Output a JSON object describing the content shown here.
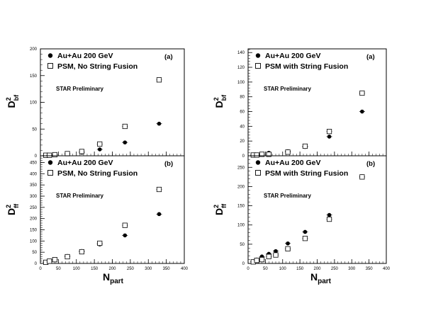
{
  "chart_data": [
    {
      "type": "scatter",
      "panel": "(a)",
      "note": "STAR Preliminary",
      "ylabel": "D",
      "ylabel_sup": "2",
      "ylabel_sub": "bf",
      "xlim": [
        0,
        400
      ],
      "ylim": [
        0,
        200
      ],
      "xticks": [
        0,
        50,
        100,
        150,
        200,
        250,
        300,
        350,
        400
      ],
      "yticks": [
        0,
        50,
        100,
        150,
        200
      ],
      "legend_position": "top-left",
      "series": [
        {
          "name": "Au+Au 200 GeV",
          "marker": "filled-circle",
          "x": [
            15,
            25,
            40,
            75,
            115,
            165,
            235,
            330
          ],
          "y": [
            1,
            1,
            2,
            3,
            6,
            12,
            25,
            60
          ]
        },
        {
          "name": "PSM, No String Fusion",
          "marker": "open-square",
          "x": [
            15,
            25,
            40,
            75,
            115,
            165,
            235,
            330
          ],
          "y": [
            1,
            1,
            2,
            4,
            8,
            22,
            55,
            142
          ]
        }
      ]
    },
    {
      "type": "scatter",
      "panel": "(b)",
      "note": "STAR Preliminary",
      "ylabel": "D",
      "ylabel_sup": "2",
      "ylabel_sub": "ff",
      "xlabel": "N",
      "xlabel_sub": "part",
      "xlim": [
        0,
        400
      ],
      "ylim": [
        0,
        480
      ],
      "xticks": [
        0,
        50,
        100,
        150,
        200,
        250,
        300,
        350,
        400
      ],
      "yticks": [
        0,
        50,
        100,
        150,
        200,
        250,
        300,
        350,
        400,
        450
      ],
      "legend_position": "top-left",
      "series": [
        {
          "name": "Au+Au 200 GeV",
          "marker": "filled-circle",
          "x": [
            15,
            25,
            40,
            75,
            115,
            165,
            235,
            330
          ],
          "y": [
            6,
            10,
            18,
            33,
            55,
            85,
            125,
            220
          ]
        },
        {
          "name": "PSM, No String Fusion",
          "marker": "open-square",
          "x": [
            15,
            25,
            40,
            75,
            115,
            165,
            235,
            330
          ],
          "y": [
            5,
            10,
            17,
            30,
            52,
            90,
            170,
            330
          ]
        }
      ]
    },
    {
      "type": "scatter",
      "panel": "(a)",
      "note": "STAR Preliminary",
      "ylabel": "D",
      "ylabel_sup": "2",
      "ylabel_sub": "bf",
      "xlim": [
        0,
        400
      ],
      "ylim": [
        0,
        145
      ],
      "xticks": [
        0,
        50,
        100,
        150,
        200,
        250,
        300,
        350,
        400
      ],
      "yticks": [
        0,
        20,
        40,
        60,
        80,
        100,
        120,
        140
      ],
      "legend_position": "top-left",
      "series": [
        {
          "name": "Au+Au 200 GeV",
          "marker": "filled-circle",
          "x": [
            15,
            25,
            40,
            60,
            115,
            165,
            235,
            330
          ],
          "y": [
            1,
            1,
            2,
            4,
            6,
            12,
            26,
            60
          ]
        },
        {
          "name": "PSM with String Fusion",
          "marker": "open-square",
          "x": [
            15,
            25,
            40,
            60,
            115,
            165,
            235,
            330
          ],
          "y": [
            1,
            1,
            2,
            2,
            5,
            13,
            33,
            85
          ]
        }
      ]
    },
    {
      "type": "scatter",
      "panel": "(b)",
      "note": "STAR Preliminary",
      "ylabel": "D",
      "ylabel_sup": "2",
      "ylabel_sub": "ff",
      "xlabel": "N",
      "xlabel_sub": "part",
      "xlim": [
        0,
        400
      ],
      "ylim": [
        0,
        280
      ],
      "xticks": [
        0,
        50,
        100,
        150,
        200,
        250,
        300,
        350,
        400
      ],
      "yticks": [
        0,
        50,
        100,
        150,
        200,
        250
      ],
      "legend_position": "top-left",
      "series": [
        {
          "name": "Au+Au 200 GeV",
          "marker": "filled-circle",
          "x": [
            15,
            25,
            40,
            60,
            80,
            115,
            165,
            235,
            330
          ],
          "y": [
            5,
            10,
            18,
            25,
            32,
            52,
            82,
            126,
            225
          ]
        },
        {
          "name": "PSM with String Fusion",
          "marker": "open-square",
          "x": [
            15,
            25,
            40,
            60,
            80,
            115,
            165,
            235,
            330
          ],
          "y": [
            4,
            8,
            10,
            18,
            22,
            38,
            65,
            115,
            225
          ]
        }
      ]
    }
  ]
}
